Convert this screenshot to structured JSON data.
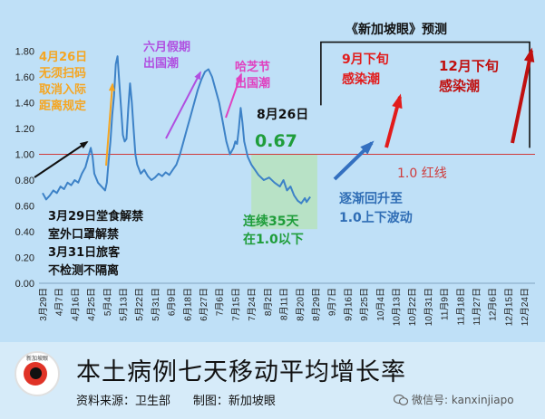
{
  "title": "本土病例七天移动平均增长率",
  "source_label": "资料来源：卫生部",
  "credit_label": "制图：新加坡眼",
  "logo_text": "新加坡眼",
  "watermark": "微信号: kanxinjiapo",
  "colors": {
    "line": "#3d82c7",
    "red_line": "#cf3b3b",
    "highlight": "#b7e2c0",
    "arrow_black": "#111111",
    "arrow_orange": "#f5a623",
    "arrow_purple": "#b04fe0",
    "arrow_magenta": "#e040c0",
    "arrow_blue": "#3470c0",
    "arrow_red": "#e21b1b",
    "arrow_darkred": "#c01010"
  },
  "chart_data": {
    "type": "line",
    "ylim": [
      0,
      2.0
    ],
    "yticks": [
      "0.00",
      "0.20",
      "0.40",
      "0.60",
      "0.80",
      "1.00",
      "1.20",
      "1.40",
      "1.60",
      "1.80"
    ],
    "x_ticks": [
      "3月29日",
      "4月7日",
      "4月16日",
      "4月25日",
      "5月4日",
      "5月13日",
      "5月22日",
      "5月31日",
      "6月9日",
      "6月18日",
      "6月27日",
      "7月6日",
      "7月15日",
      "7月24日",
      "8月2日",
      "8月11日",
      "8月20日",
      "8月29日",
      "9月7日",
      "9月16日",
      "9月25日",
      "10月4日",
      "10月13日",
      "10月22日",
      "10月31日",
      "11月9日",
      "11月18日",
      "11月27日",
      "12月6日",
      "12月15日",
      "12月24日"
    ],
    "x_start": "2021-03-29",
    "x_end": "2021-12-28",
    "reference_line": {
      "value": 1.0,
      "label": "1.0 红线"
    },
    "series": [
      {
        "points": [
          [
            "2021-03-29",
            0.7
          ],
          [
            "2021-03-31",
            0.65
          ],
          [
            "2021-04-02",
            0.68
          ],
          [
            "2021-04-04",
            0.72
          ],
          [
            "2021-04-06",
            0.7
          ],
          [
            "2021-04-08",
            0.75
          ],
          [
            "2021-04-10",
            0.73
          ],
          [
            "2021-04-12",
            0.78
          ],
          [
            "2021-04-14",
            0.76
          ],
          [
            "2021-04-16",
            0.8
          ],
          [
            "2021-04-18",
            0.78
          ],
          [
            "2021-04-20",
            0.85
          ],
          [
            "2021-04-22",
            0.9
          ],
          [
            "2021-04-24",
            1.0
          ],
          [
            "2021-04-25",
            1.05
          ],
          [
            "2021-04-26",
            0.98
          ],
          [
            "2021-04-27",
            0.85
          ],
          [
            "2021-04-29",
            0.78
          ],
          [
            "2021-05-01",
            0.75
          ],
          [
            "2021-05-03",
            0.72
          ],
          [
            "2021-05-04",
            0.78
          ],
          [
            "2021-05-05",
            0.95
          ],
          [
            "2021-05-06",
            1.1
          ],
          [
            "2021-05-07",
            1.3
          ],
          [
            "2021-05-08",
            1.45
          ],
          [
            "2021-05-09",
            1.7
          ],
          [
            "2021-05-10",
            1.76
          ],
          [
            "2021-05-11",
            1.55
          ],
          [
            "2021-05-12",
            1.35
          ],
          [
            "2021-05-13",
            1.15
          ],
          [
            "2021-05-14",
            1.1
          ],
          [
            "2021-05-15",
            1.12
          ],
          [
            "2021-05-16",
            1.35
          ],
          [
            "2021-05-17",
            1.55
          ],
          [
            "2021-05-18",
            1.4
          ],
          [
            "2021-05-19",
            1.2
          ],
          [
            "2021-05-20",
            1.0
          ],
          [
            "2021-05-21",
            0.92
          ],
          [
            "2021-05-23",
            0.85
          ],
          [
            "2021-05-25",
            0.88
          ],
          [
            "2021-05-27",
            0.83
          ],
          [
            "2021-05-29",
            0.8
          ],
          [
            "2021-05-31",
            0.82
          ],
          [
            "2021-06-02",
            0.85
          ],
          [
            "2021-06-04",
            0.83
          ],
          [
            "2021-06-06",
            0.86
          ],
          [
            "2021-06-08",
            0.84
          ],
          [
            "2021-06-10",
            0.88
          ],
          [
            "2021-06-12",
            0.92
          ],
          [
            "2021-06-14",
            1.0
          ],
          [
            "2021-06-16",
            1.1
          ],
          [
            "2021-06-18",
            1.2
          ],
          [
            "2021-06-20",
            1.3
          ],
          [
            "2021-06-22",
            1.4
          ],
          [
            "2021-06-24",
            1.5
          ],
          [
            "2021-06-26",
            1.58
          ],
          [
            "2021-06-28",
            1.64
          ],
          [
            "2021-06-30",
            1.66
          ],
          [
            "2021-07-02",
            1.6
          ],
          [
            "2021-07-04",
            1.5
          ],
          [
            "2021-07-06",
            1.4
          ],
          [
            "2021-07-08",
            1.25
          ],
          [
            "2021-07-10",
            1.1
          ],
          [
            "2021-07-12",
            1.0
          ],
          [
            "2021-07-14",
            1.05
          ],
          [
            "2021-07-15",
            1.1
          ],
          [
            "2021-07-16",
            1.08
          ],
          [
            "2021-07-17",
            1.2
          ],
          [
            "2021-07-18",
            1.36
          ],
          [
            "2021-07-19",
            1.25
          ],
          [
            "2021-07-20",
            1.1
          ],
          [
            "2021-07-22",
            0.98
          ],
          [
            "2021-07-24",
            0.92
          ],
          [
            "2021-07-26",
            0.88
          ],
          [
            "2021-07-28",
            0.84
          ],
          [
            "2021-07-31",
            0.8
          ],
          [
            "2021-08-03",
            0.82
          ],
          [
            "2021-08-06",
            0.78
          ],
          [
            "2021-08-09",
            0.75
          ],
          [
            "2021-08-11",
            0.8
          ],
          [
            "2021-08-13",
            0.72
          ],
          [
            "2021-08-15",
            0.75
          ],
          [
            "2021-08-17",
            0.68
          ],
          [
            "2021-08-19",
            0.64
          ],
          [
            "2021-08-21",
            0.62
          ],
          [
            "2021-08-23",
            0.66
          ],
          [
            "2021-08-24",
            0.63
          ],
          [
            "2021-08-26",
            0.67
          ]
        ]
      }
    ],
    "annotations": [
      {
        "text": "4月26日\n无须扫码\n取消入际\n距离规定",
        "color": "#f5a623"
      },
      {
        "text": "六月假期\n出国潮",
        "color": "#b04fe0"
      },
      {
        "text": "哈芝节\n出国潮",
        "color": "#e040c0"
      },
      {
        "text": "8月26日",
        "color": "#111111"
      },
      {
        "text": "0.67",
        "color": "#1f9d3a"
      },
      {
        "text": "3月29日堂食解禁\n室外口罩解禁\n3月31日旅客\n不检测不隔离",
        "color": "#111111"
      },
      {
        "text": "连续35天\n在1.0以下",
        "color": "#1f9d3a"
      },
      {
        "text": "逐渐回升至\n1.0上下波动",
        "color": "#2f6db5"
      },
      {
        "text": "《新加坡眼》预测",
        "color": "#111111"
      },
      {
        "text": "9月下旬\n感染潮",
        "color": "#e21b1b"
      },
      {
        "text": "12月下旬\n感染潮",
        "color": "#c01010"
      }
    ]
  }
}
